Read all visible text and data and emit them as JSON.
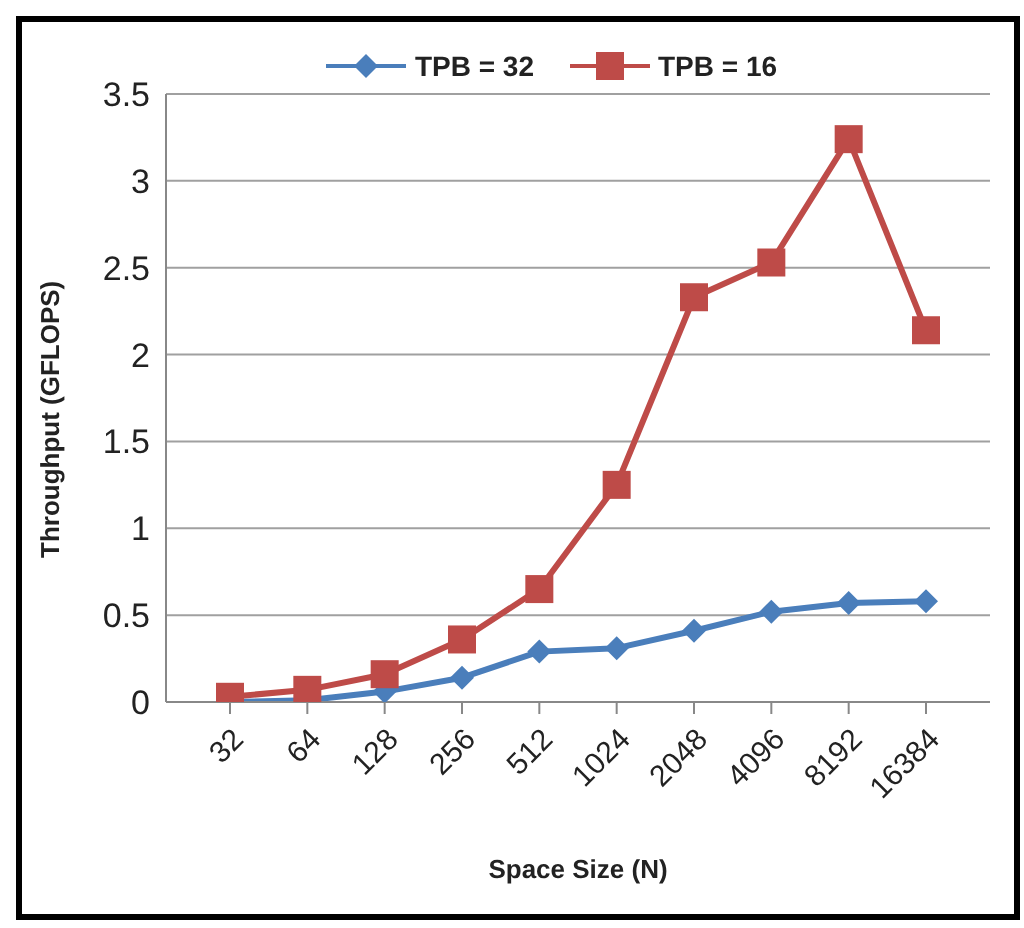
{
  "chart_data": {
    "type": "line",
    "xlabel": "Space Size (N)",
    "ylabel": "Throughput (GFLOPS)",
    "categories": [
      "32",
      "64",
      "128",
      "256",
      "512",
      "1024",
      "2048",
      "4096",
      "8192",
      "16384"
    ],
    "series": [
      {
        "name": "TPB = 32",
        "color": "#4a7ebb",
        "marker": "diamond",
        "values": [
          0.0,
          0.01,
          0.06,
          0.14,
          0.29,
          0.31,
          0.41,
          0.52,
          0.57,
          0.58
        ]
      },
      {
        "name": "TPB = 16",
        "color": "#be4b48",
        "marker": "square",
        "values": [
          0.03,
          0.07,
          0.16,
          0.36,
          0.65,
          1.25,
          2.33,
          2.53,
          3.24,
          2.14
        ]
      }
    ],
    "ylim": [
      0,
      3.5
    ],
    "yticks": [
      0,
      0.5,
      1,
      1.5,
      2,
      2.5,
      3,
      3.5
    ],
    "grid": "y",
    "legend": "top"
  }
}
